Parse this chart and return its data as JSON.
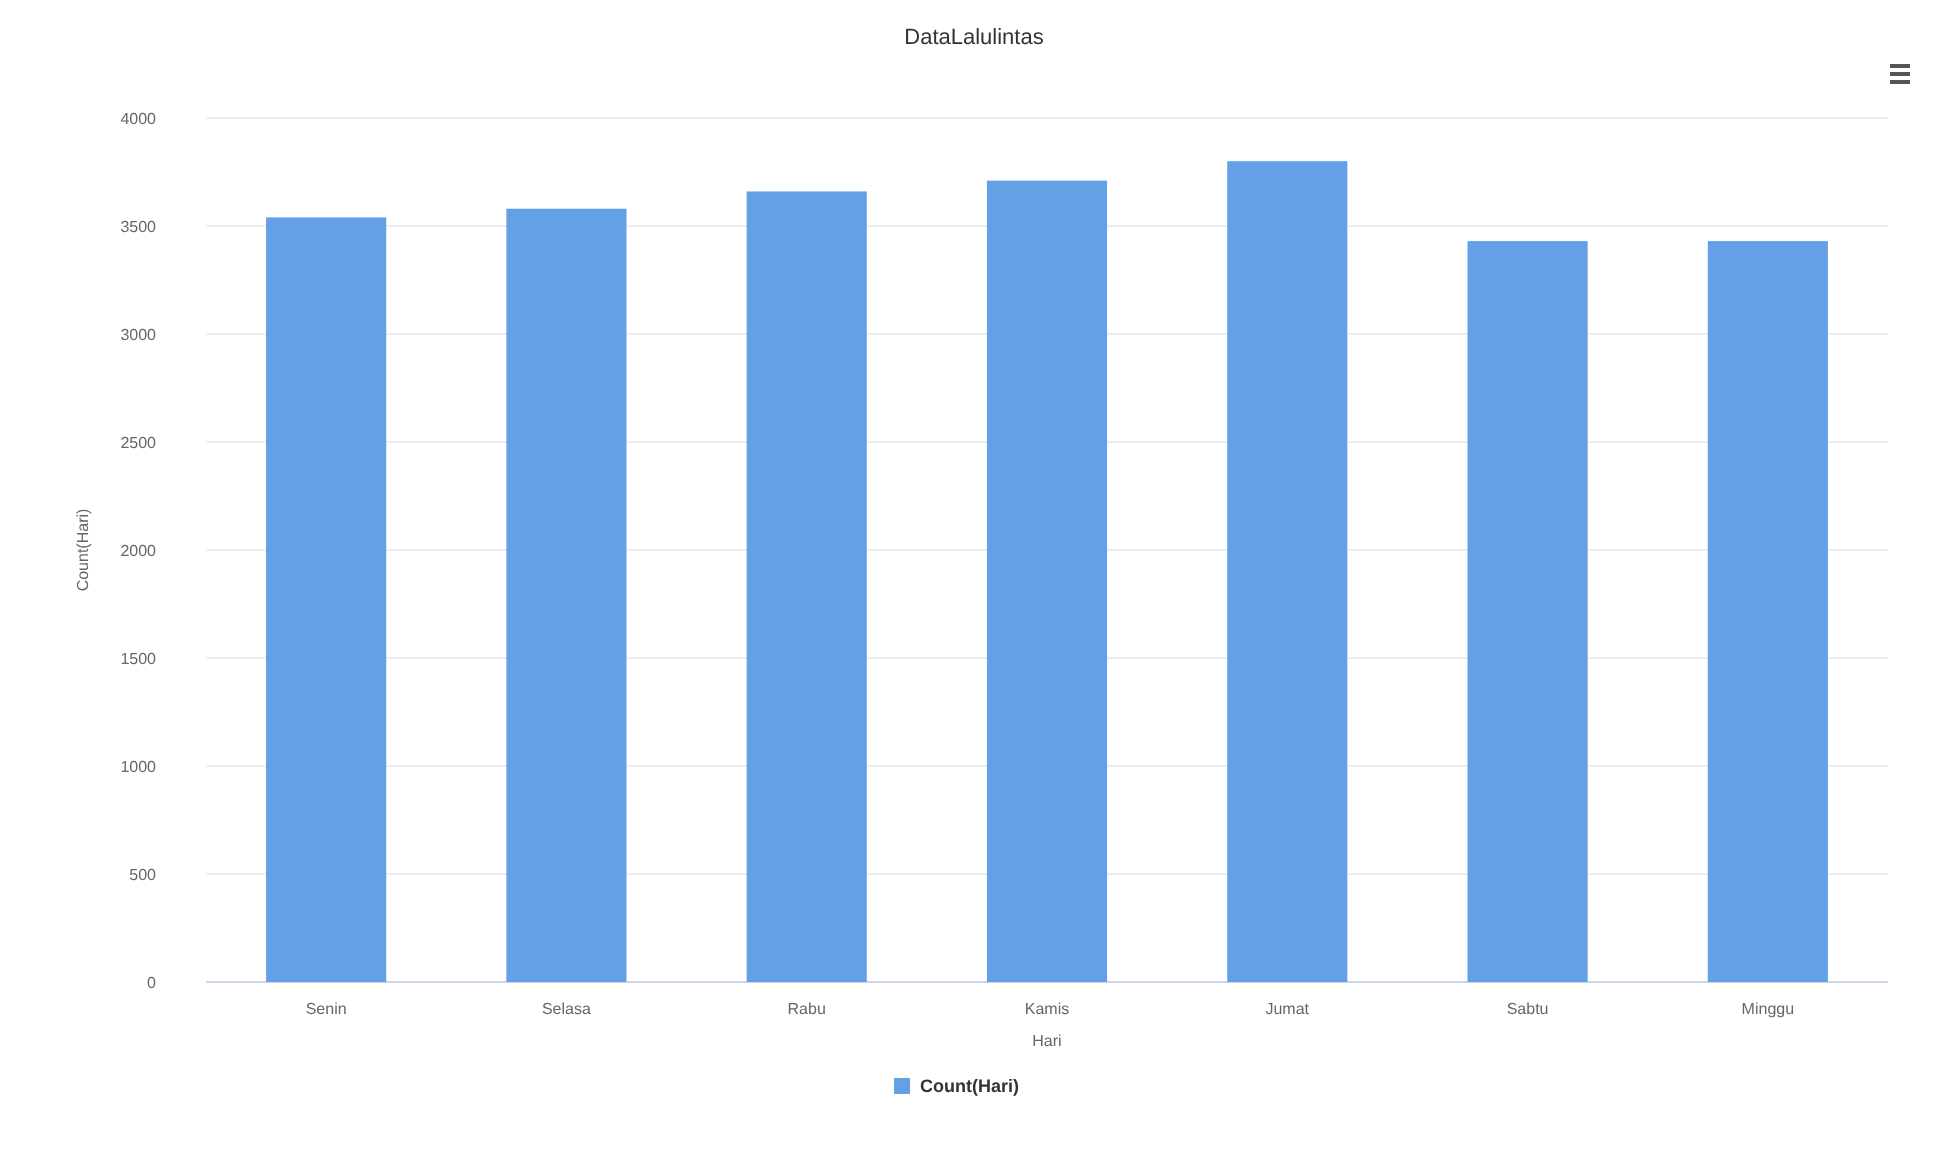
{
  "chart_data": {
    "type": "bar",
    "title": "DataLalulintas",
    "xlabel": "Hari",
    "ylabel": "Count(Hari)",
    "categories": [
      "Senin",
      "Selasa",
      "Rabu",
      "Kamis",
      "Jumat",
      "Sabtu",
      "Minggu"
    ],
    "series": [
      {
        "name": "Count(Hari)",
        "color": "#64a0e6",
        "values": [
          3540,
          3580,
          3660,
          3710,
          3800,
          3430,
          3430
        ]
      }
    ],
    "ylim": [
      0,
      4000
    ],
    "yticks": [
      0,
      500,
      1000,
      1500,
      2000,
      2500,
      3000,
      3500,
      4000
    ],
    "grid": "y",
    "legend": "bottom"
  }
}
